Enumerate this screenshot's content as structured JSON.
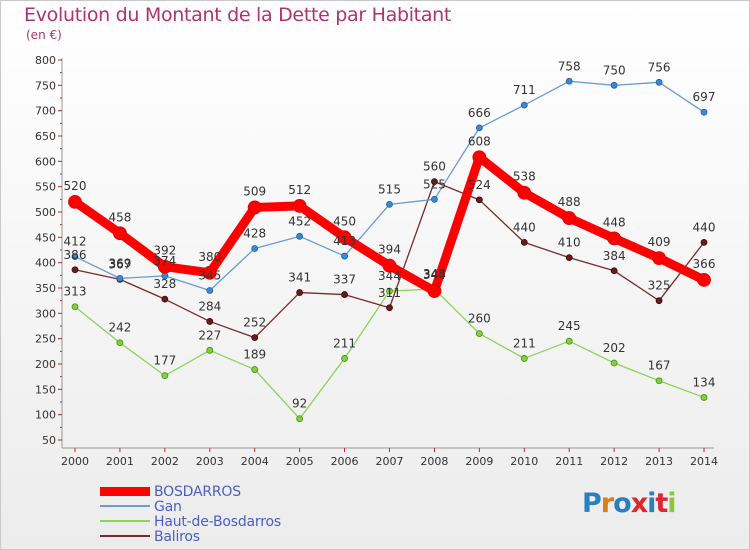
{
  "title": "Evolution du Montant de la Dette par Habitant",
  "subtitle": "(en €)",
  "logo": {
    "text": "Proxiti",
    "colors": [
      "#2a7fc0",
      "#e07b1a",
      "#2a7fc0",
      "#e0262c",
      "#2a7fc0",
      "#e0262c",
      "#8cc63f"
    ]
  },
  "chart_data": {
    "type": "line",
    "x": [
      "2000",
      "2001",
      "2002",
      "2003",
      "2004",
      "2005",
      "2006",
      "2007",
      "2008",
      "2009",
      "2010",
      "2011",
      "2012",
      "2013",
      "2014"
    ],
    "ylim": [
      50,
      800
    ],
    "yticks": [
      50,
      100,
      150,
      200,
      250,
      300,
      350,
      400,
      450,
      500,
      550,
      600,
      650,
      700,
      750,
      800
    ],
    "grid": false,
    "legend_position": "bottom-left",
    "series": [
      {
        "name": "BOSDARROS",
        "color": "#ff0000",
        "values": [
          520,
          458,
          392,
          380,
          509,
          512,
          450,
          394,
          344,
          608,
          538,
          488,
          448,
          409,
          366
        ]
      },
      {
        "name": "Gan",
        "color": "#6b9bd2",
        "values": [
          412,
          369,
          374,
          345,
          428,
          452,
          413,
          515,
          525,
          666,
          711,
          758,
          750,
          756,
          697
        ]
      },
      {
        "name": "Haut-de-Bosdarros",
        "color": "#8cd35a",
        "values": [
          313,
          242,
          177,
          227,
          189,
          92,
          211,
          344,
          348,
          260,
          211,
          245,
          202,
          167,
          134
        ]
      },
      {
        "name": "Baliros",
        "color": "#7a2a2a",
        "values": [
          386,
          367,
          328,
          284,
          252,
          341,
          337,
          311,
          560,
          524,
          440,
          410,
          384,
          325,
          440
        ]
      }
    ]
  }
}
